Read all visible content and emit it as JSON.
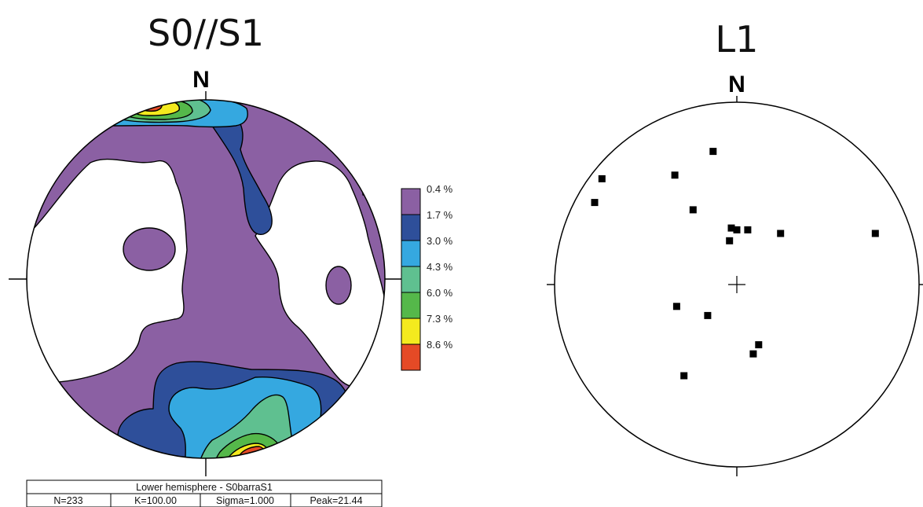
{
  "left_panel": {
    "title": "S0//S1",
    "north_label": "N",
    "legend": {
      "levels": [
        {
          "label": "0.4 %",
          "color": "#8b60a3"
        },
        {
          "label": "1.7 %",
          "color": "#2e4f9a"
        },
        {
          "label": "3.0 %",
          "color": "#35a8e0"
        },
        {
          "label": "4.3 %",
          "color": "#5fc090"
        },
        {
          "label": "6.0 %",
          "color": "#55b84a"
        },
        {
          "label": "7.3 %",
          "color": "#f4ea1e"
        },
        {
          "label": "8.6 %",
          "color": "#e54a26"
        }
      ]
    },
    "stats": {
      "header": "Lower hemisphere - S0barraS1",
      "n": "N=233",
      "k": "K=100.00",
      "sigma": "Sigma=1.000",
      "peak": "Peak=21.44"
    }
  },
  "right_panel": {
    "title": "L1",
    "north_label": "N",
    "chart_data": {
      "type": "scatter",
      "projection": "stereonet, lower hemisphere",
      "x_range": [
        -1,
        1
      ],
      "y_range": [
        -1,
        1
      ],
      "points": [
        {
          "x": -0.13,
          "y": 0.73
        },
        {
          "x": -0.34,
          "y": 0.6
        },
        {
          "x": -0.74,
          "y": 0.58
        },
        {
          "x": -0.78,
          "y": 0.45
        },
        {
          "x": -0.24,
          "y": 0.41
        },
        {
          "x": -0.03,
          "y": 0.31
        },
        {
          "x": 0.0,
          "y": 0.3
        },
        {
          "x": 0.06,
          "y": 0.3
        },
        {
          "x": 0.24,
          "y": 0.28
        },
        {
          "x": 0.76,
          "y": 0.28
        },
        {
          "x": -0.04,
          "y": 0.24
        },
        {
          "x": -0.33,
          "y": -0.12
        },
        {
          "x": -0.16,
          "y": -0.17
        },
        {
          "x": 0.12,
          "y": -0.33
        },
        {
          "x": 0.09,
          "y": -0.38
        },
        {
          "x": -0.29,
          "y": -0.5
        }
      ]
    }
  }
}
